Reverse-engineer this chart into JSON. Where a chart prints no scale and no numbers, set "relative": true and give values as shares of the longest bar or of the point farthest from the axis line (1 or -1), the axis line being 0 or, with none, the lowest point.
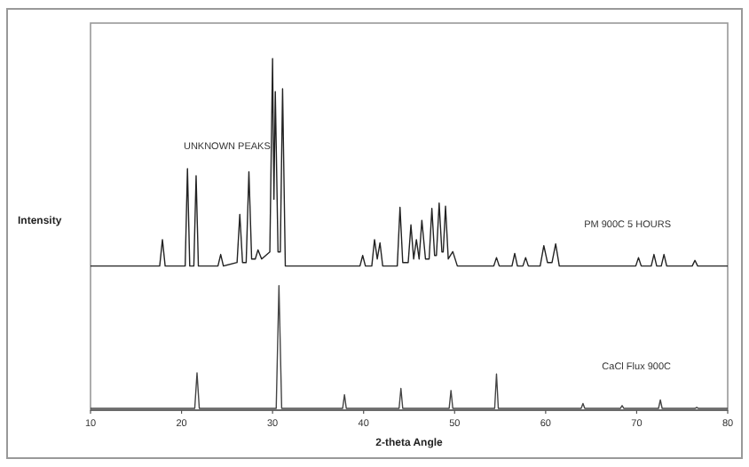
{
  "chart_data": {
    "type": "line",
    "relative": true,
    "xlabel": "2-theta Angle",
    "ylabel": "Intensity",
    "annotations": [
      "UNKNOWN PEAKS"
    ],
    "xlim": [
      10,
      80
    ],
    "xticks": [
      10,
      20,
      30,
      40,
      50,
      60,
      70,
      80
    ],
    "grid": false,
    "marker": "none",
    "line_style": "solid",
    "series": [
      {
        "name": "PM 900C 5 HOURS",
        "color": "#222222",
        "x": [
          10,
          17.6,
          17.9,
          18.2,
          20.4,
          20.65,
          20.9,
          21.35,
          21.6,
          21.85,
          24.0,
          24.3,
          24.6,
          26.1,
          26.4,
          26.7,
          27.1,
          27.4,
          27.7,
          28.1,
          28.4,
          28.8,
          29.7,
          30.0,
          30.15,
          30.3,
          30.6,
          30.85,
          31.1,
          31.4,
          39.6,
          39.9,
          40.2,
          40.9,
          41.2,
          41.5,
          41.8,
          42.1,
          43.7,
          44.0,
          44.3,
          44.9,
          45.2,
          45.5,
          45.8,
          46.1,
          46.4,
          46.8,
          47.2,
          47.5,
          47.8,
          48.0,
          48.3,
          48.6,
          48.75,
          49.0,
          49.3,
          49.8,
          50.3,
          54.3,
          54.6,
          54.9,
          56.3,
          56.6,
          56.9,
          57.5,
          57.8,
          58.1,
          59.4,
          59.8,
          60.2,
          60.7,
          61.1,
          61.5,
          69.9,
          70.2,
          70.5,
          71.6,
          71.9,
          72.2,
          72.7,
          73.0,
          73.3,
          76.1,
          76.4,
          76.7,
          80
        ],
        "values": [
          0.41,
          0.41,
          0.485,
          0.41,
          0.41,
          0.687,
          0.41,
          0.41,
          0.667,
          0.41,
          0.41,
          0.443,
          0.41,
          0.42,
          0.557,
          0.42,
          0.42,
          0.678,
          0.43,
          0.43,
          0.456,
          0.43,
          0.45,
          1,
          0.6,
          0.906,
          0.45,
          0.45,
          0.914,
          0.41,
          0.41,
          0.44,
          0.41,
          0.41,
          0.485,
          0.43,
          0.476,
          0.41,
          0.41,
          0.577,
          0.42,
          0.42,
          0.527,
          0.43,
          0.485,
          0.43,
          0.54,
          0.43,
          0.43,
          0.574,
          0.44,
          0.44,
          0.589,
          0.45,
          0.45,
          0.58,
          0.43,
          0.451,
          0.41,
          0.41,
          0.434,
          0.41,
          0.41,
          0.446,
          0.41,
          0.41,
          0.434,
          0.41,
          0.41,
          0.468,
          0.42,
          0.42,
          0.473,
          0.41,
          0.41,
          0.434,
          0.41,
          0.41,
          0.443,
          0.41,
          0.41,
          0.443,
          0.41,
          0.41,
          0.426,
          0.41,
          0.41
        ]
      },
      {
        "name": "CaCl Flux 900C",
        "color": "#444444",
        "x": [
          10,
          21.45,
          21.7,
          21.95,
          30.4,
          30.7,
          31.0,
          37.7,
          37.9,
          38.1,
          43.9,
          44.1,
          44.3,
          49.4,
          49.6,
          49.8,
          54.4,
          54.6,
          54.8,
          63.9,
          64.1,
          64.3,
          68.2,
          68.4,
          68.6,
          72.4,
          72.6,
          72.8,
          76.4,
          76.6,
          76.8,
          80
        ],
        "values": [
          0.005,
          0.005,
          0.106,
          0.005,
          0.005,
          0.354,
          0.005,
          0.005,
          0.044,
          0.005,
          0.005,
          0.062,
          0.005,
          0.005,
          0.056,
          0.005,
          0.005,
          0.103,
          0.005,
          0.005,
          0.019,
          0.005,
          0.005,
          0.013,
          0.005,
          0.005,
          0.029,
          0.005,
          0.005,
          0.008,
          0.005,
          0.005
        ]
      }
    ]
  }
}
